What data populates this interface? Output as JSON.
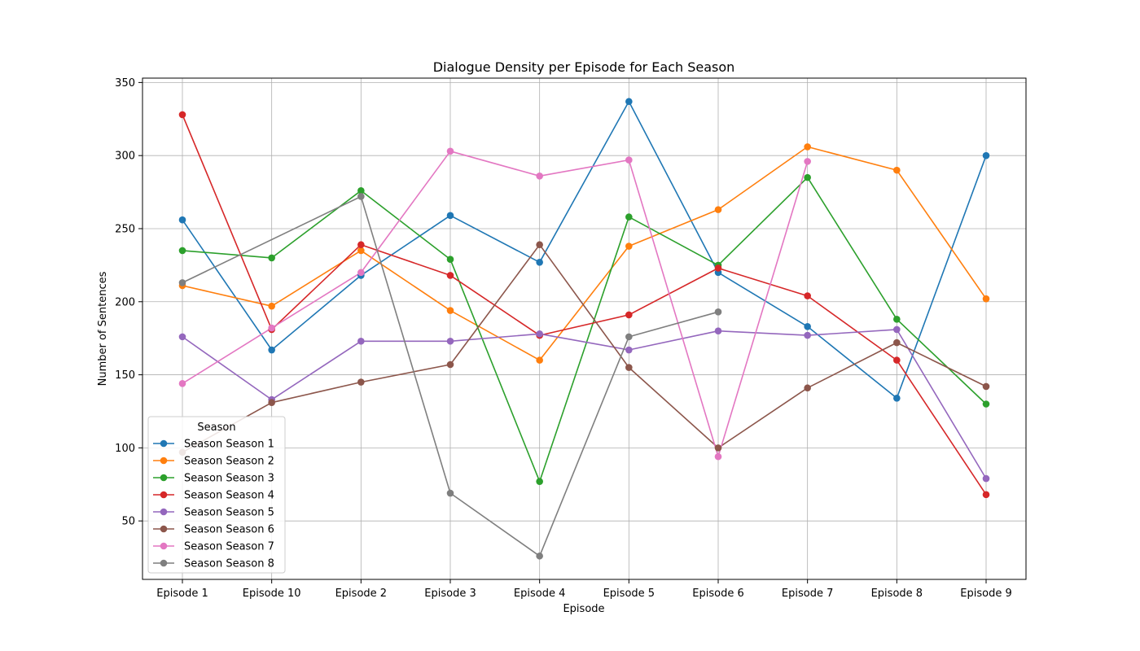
{
  "chart_data": {
    "type": "line",
    "title": "Dialogue Density per Episode for Each Season",
    "xlabel": "Episode",
    "ylabel": "Number of Sentences",
    "categories": [
      "Episode 1",
      "Episode 10",
      "Episode 2",
      "Episode 3",
      "Episode 4",
      "Episode 5",
      "Episode 6",
      "Episode 7",
      "Episode 8",
      "Episode 9"
    ],
    "ylim": [
      10,
      353
    ],
    "yticks": [
      50,
      100,
      150,
      200,
      250,
      300,
      350
    ],
    "grid": true,
    "legend": {
      "title": "Season",
      "placement": "lower-left"
    },
    "series": [
      {
        "name": "Season Season 1",
        "color": "#1f77b4",
        "values": [
          256,
          167,
          218,
          259,
          227,
          337,
          220,
          183,
          134,
          300
        ]
      },
      {
        "name": "Season Season 2",
        "color": "#ff7f0e",
        "values": [
          211,
          197,
          235,
          194,
          160,
          238,
          263,
          306,
          290,
          202
        ]
      },
      {
        "name": "Season Season 3",
        "color": "#2ca02c",
        "values": [
          235,
          230,
          276,
          229,
          77,
          258,
          225,
          285,
          188,
          130
        ]
      },
      {
        "name": "Season Season 4",
        "color": "#d62728",
        "values": [
          328,
          181,
          239,
          218,
          177,
          191,
          223,
          204,
          160,
          68
        ]
      },
      {
        "name": "Season Season 5",
        "color": "#9467bd",
        "values": [
          176,
          133,
          173,
          173,
          178,
          167,
          180,
          177,
          181,
          79
        ]
      },
      {
        "name": "Season Season 6",
        "color": "#8c564b",
        "values": [
          97,
          131,
          145,
          157,
          239,
          155,
          100,
          141,
          172,
          142
        ]
      },
      {
        "name": "Season Season 7",
        "color": "#e377c2",
        "values": [
          144,
          182,
          220,
          303,
          286,
          297,
          94,
          296,
          null,
          null
        ]
      },
      {
        "name": "Season Season 8",
        "color": "#7f7f7f",
        "values": [
          213,
          null,
          272,
          69,
          26,
          176,
          193,
          null,
          null,
          null
        ]
      }
    ]
  }
}
